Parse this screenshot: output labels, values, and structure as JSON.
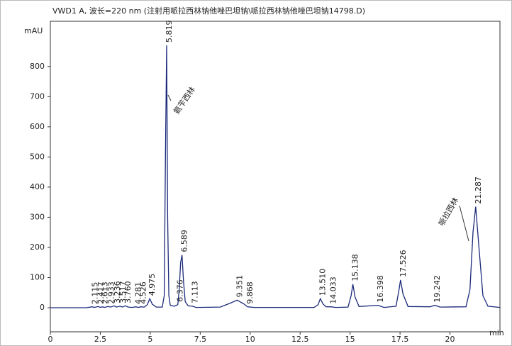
{
  "chart_data": {
    "type": "line",
    "title": "VWD1 A, 波长=220 nm (注射用哌拉西林钠他唑巴坦钠\\哌拉西林钠他唑巴坦钠14798.D)",
    "y_label": "mAU",
    "x_label": "min",
    "x": [
      0,
      1.8,
      2.1,
      2.2,
      2.4,
      2.5,
      2.6,
      2.7,
      2.9,
      3.0,
      3.2,
      3.3,
      3.5,
      3.6,
      3.75,
      3.9,
      4.1,
      4.28,
      4.4,
      4.53,
      4.7,
      4.85,
      4.975,
      5.1,
      5.3,
      5.6,
      5.7,
      5.76,
      5.819,
      5.87,
      5.93,
      6.0,
      6.2,
      6.376,
      6.45,
      6.52,
      6.589,
      6.66,
      6.75,
      6.9,
      7.113,
      7.3,
      8.5,
      9.0,
      9.351,
      9.7,
      9.868,
      10.2,
      13.2,
      13.4,
      13.51,
      13.65,
      13.8,
      14.033,
      14.3,
      14.9,
      15.05,
      15.138,
      15.25,
      15.45,
      16.398,
      16.7,
      17.3,
      17.45,
      17.526,
      17.65,
      17.9,
      19.0,
      19.242,
      19.5,
      20.8,
      21.0,
      21.15,
      21.287,
      21.45,
      21.65,
      21.9,
      22.5
    ],
    "values": [
      0,
      0,
      3,
      1,
      4,
      1,
      3,
      1,
      4,
      2,
      6,
      2,
      5,
      2,
      6,
      2,
      1,
      3,
      1,
      3,
      2,
      10,
      30,
      12,
      2,
      2,
      40,
      500,
      870,
      300,
      40,
      8,
      5,
      10,
      60,
      150,
      175,
      90,
      20,
      6,
      5,
      1,
      2,
      15,
      25,
      12,
      3,
      1,
      1,
      10,
      30,
      12,
      3,
      3,
      1,
      2,
      40,
      78,
      35,
      4,
      8,
      1,
      5,
      60,
      92,
      45,
      4,
      3,
      8,
      2,
      3,
      60,
      250,
      335,
      200,
      40,
      5,
      1
    ],
    "color": "#1b2a7a",
    "peak_times": [
      2.115,
      2.417,
      2.613,
      2.933,
      3.236,
      3.517,
      {
        "value": 3.76,
        "label": "3.760"
      },
      4.281,
      4.526,
      4.975,
      5.819,
      6.376,
      6.589,
      7.113,
      9.351,
      9.868,
      {
        "value": 13.51,
        "label": "13.510"
      },
      14.033,
      15.138,
      16.398,
      17.526,
      19.242,
      21.287
    ],
    "peak_heights": [
      2,
      3,
      3,
      3,
      5,
      5,
      5,
      2,
      3,
      30,
      870,
      10,
      175,
      5,
      25,
      3,
      30,
      3,
      78,
      8,
      92,
      8,
      335
    ],
    "annotations": [
      "氨苄西林",
      "哌拉西林"
    ],
    "xlim": [
      0,
      22.5
    ],
    "ylim": [
      -80,
      950
    ],
    "xticks": [
      0,
      2.5,
      5,
      7.5,
      10,
      12.5,
      15,
      17.5,
      20
    ],
    "yticks": [
      0,
      100,
      200,
      300,
      400,
      500,
      600,
      700,
      800
    ],
    "grid": false
  }
}
